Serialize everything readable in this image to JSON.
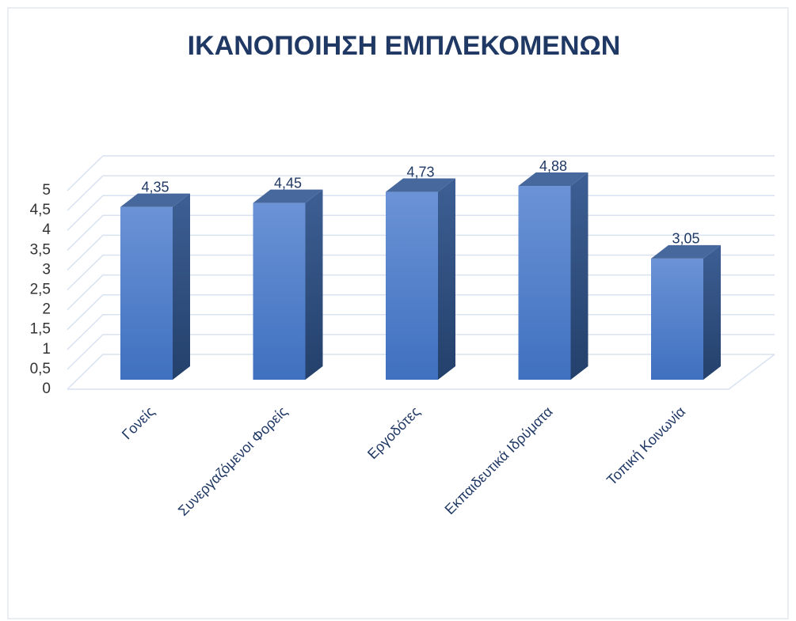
{
  "chart_data": {
    "type": "bar3d",
    "title": "ΙΚΑΝΟΠΟΙΗΣΗ ΕΜΠΛΕΚΟΜΕΝΩΝ",
    "categories": [
      "Γονείς",
      "Συνεργαζόμενοι Φορείς",
      "Εργοδότες",
      "Εκπαιδευτικά Ιδρύματα",
      "Τοπική Κοινωνία"
    ],
    "values": [
      4.35,
      4.45,
      4.73,
      4.88,
      3.05
    ],
    "value_labels": [
      "4,35",
      "4,45",
      "4,73",
      "4,88",
      "3,05"
    ],
    "color": "#4a78c2",
    "ylim": [
      0,
      5
    ],
    "yticks": [
      0,
      {
        "value": 0.5,
        "label": "0,5"
      },
      1,
      {
        "value": 1.5,
        "label": "1,5"
      },
      2,
      {
        "value": 2.5,
        "label": "2,5"
      },
      3,
      {
        "value": 3.5,
        "label": "3,5"
      },
      4,
      {
        "value": 4.5,
        "label": "4,5"
      },
      5
    ],
    "grid": true
  }
}
